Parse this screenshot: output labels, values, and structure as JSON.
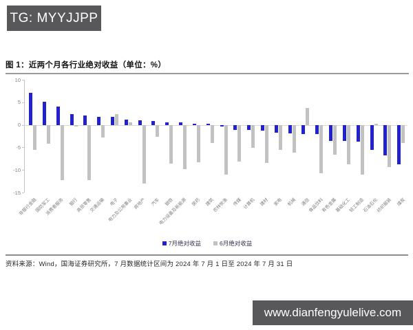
{
  "badges": {
    "telegram": "TG: MYYJJPP",
    "website": "www.dianfengyulelive.com"
  },
  "chart": {
    "title": "图 1：近两个月各行业绝对收益（单位：%）"
  },
  "source_note": "资料来源：Wind，国海证券研究所，7 月数据统计区间为 2024 年 7 月 1 日至 2024 年 7 月 31 日",
  "colors": {
    "july_bar": "#2222CC",
    "june_bar": "#C2C2C2",
    "badge_background": "#58585A",
    "axis_gray": "#C3C3C3"
  },
  "chart_data": {
    "type": "bar",
    "title": "图 1：近两个月各行业绝对收益（单位：%）",
    "xlabel": "",
    "ylabel": "",
    "ylim": [
      -15,
      10
    ],
    "yticks": [
      10,
      5,
      0,
      -5,
      -10,
      -15
    ],
    "grid": false,
    "legend_position": "bottom",
    "categories": [
      "非银行金融",
      "国防军工",
      "消费者服务",
      "银行",
      "商贸零售",
      "交通运输",
      "电子",
      "电力及公用事业",
      "房地产",
      "汽车",
      "钢铁",
      "电力设备及新能源",
      "医药",
      "建筑",
      "农林牧渔",
      "传媒",
      "计算机",
      "建材",
      "家电",
      "机械",
      "通信",
      "食品饮料",
      "有色金属",
      "基础化工",
      "轻工制造",
      "石油石化",
      "纺织服装",
      "煤炭"
    ],
    "series": [
      {
        "name": "7月绝对收益",
        "color": "#2222CC",
        "values": [
          7.1,
          5.2,
          4.0,
          2.4,
          2.1,
          1.8,
          1.7,
          1.2,
          1.0,
          0.8,
          0.6,
          0.5,
          0.3,
          0.2,
          -0.3,
          -1.2,
          -1.2,
          -1.3,
          -1.8,
          -1.9,
          -2.0,
          -2.1,
          -3.5,
          -3.6,
          -3.7,
          -5.6,
          -6.8,
          -8.8
        ]
      },
      {
        "name": "6月绝对收益",
        "color": "#C2C2C2",
        "values": [
          -5.6,
          -4.2,
          -12.3,
          -0.3,
          -12.3,
          -2.8,
          2.4,
          0.6,
          -13.1,
          -2.6,
          -8.6,
          -9.8,
          -8.3,
          -4.0,
          -11.0,
          -8.2,
          -5.1,
          -8.4,
          -5.5,
          -6.1,
          3.7,
          -10.8,
          -6.6,
          -8.8,
          -11.1,
          0.3,
          -9.4,
          -4.1
        ]
      }
    ]
  }
}
